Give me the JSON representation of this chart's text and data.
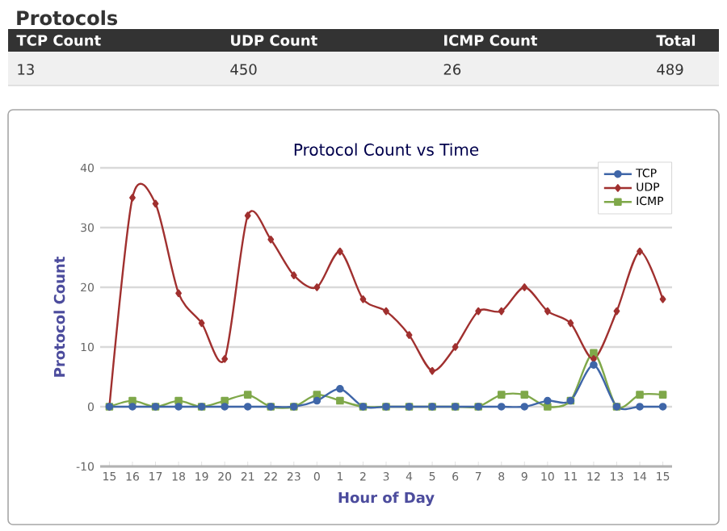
{
  "chart_data": [
    {
      "type": "other",
      "title": "Protocols",
      "categories": [
        "TCP Count",
        "UDP Count",
        "ICMP Count",
        "Total"
      ],
      "values": [
        13,
        450,
        26,
        489
      ],
      "data_labels": true
    },
    {
      "type": "line",
      "title": "Protocol Count vs Time",
      "xlabel": "Hour of Day",
      "ylabel": "Protocol Count",
      "categories": [
        "15",
        "16",
        "17",
        "18",
        "19",
        "20",
        "21",
        "22",
        "23",
        "0",
        "1",
        "2",
        "3",
        "4",
        "5",
        "6",
        "7",
        "8",
        "9",
        "10",
        "11",
        "12",
        "13",
        "14",
        "15"
      ],
      "ylim": [
        -10,
        40
      ],
      "yticks": [
        -10,
        0,
        10,
        20,
        30,
        40
      ],
      "grid": "y",
      "legend": "top right",
      "series": [
        {
          "name": "TCP",
          "color": "#3f66a8",
          "marker": "circle",
          "values": [
            0,
            0,
            0,
            0,
            0,
            0,
            0,
            0,
            0,
            1,
            3,
            0,
            0,
            0,
            0,
            0,
            0,
            0,
            0,
            1,
            1,
            7,
            0,
            0,
            0
          ]
        },
        {
          "name": "UDP",
          "color": "#a0302f",
          "marker": "diamond",
          "values": [
            0,
            35,
            34,
            19,
            14,
            8,
            32,
            28,
            22,
            20,
            26,
            18,
            16,
            12,
            6,
            10,
            16,
            16,
            20,
            16,
            14,
            8,
            16,
            26,
            18
          ]
        },
        {
          "name": "ICMP",
          "color": "#7fa84a",
          "marker": "square",
          "values": [
            0,
            1,
            0,
            1,
            0,
            1,
            2,
            0,
            0,
            2,
            1,
            0,
            0,
            0,
            0,
            0,
            0,
            2,
            2,
            0,
            1,
            9,
            0,
            2,
            2
          ]
        }
      ]
    }
  ]
}
